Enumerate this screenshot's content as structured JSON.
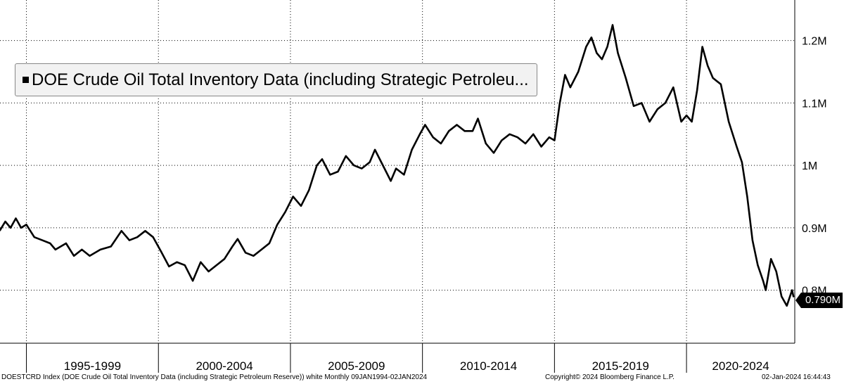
{
  "legend": {
    "label": "DOE Crude Oil Total Inventory Data (including Strategic Petroleu..."
  },
  "last_value_label": "0.790M",
  "footer": {
    "left": "DOESTCRD Index (DOE Crude Oil Total Inventory Data (including Strategic Petroleum Reserve)) white  Monthly 09JAN1994-02JAN2024",
    "center": "Copyright© 2024 Bloomberg Finance L.P.",
    "right": "02-Jan-2024 16:44:43"
  },
  "colors": {
    "line": "#000000",
    "background": "#ffffff",
    "grid": "#000000",
    "legend_bg": "#f2f2f2"
  },
  "chart_data": {
    "type": "line",
    "title": "",
    "xlabel": "",
    "ylabel": "",
    "y_ticks": [
      {
        "value": 0.8,
        "label": "0.8M"
      },
      {
        "value": 0.9,
        "label": "0.9M"
      },
      {
        "value": 1.0,
        "label": "1M"
      },
      {
        "value": 1.1,
        "label": "1.1M"
      },
      {
        "value": 1.2,
        "label": "1.2M"
      }
    ],
    "ylim": [
      0.715,
      1.265
    ],
    "xlim": [
      1994.0,
      2024.1
    ],
    "x_categories": [
      {
        "label": "1995-1999",
        "start": 1995,
        "end": 2000
      },
      {
        "label": "2000-2004",
        "start": 2000,
        "end": 2005
      },
      {
        "label": "2005-2009",
        "start": 2005,
        "end": 2010
      },
      {
        "label": "2010-2014",
        "start": 2010,
        "end": 2015
      },
      {
        "label": "2015-2019",
        "start": 2015,
        "end": 2020
      },
      {
        "label": "2020-2024",
        "start": 2020,
        "end": 2025
      }
    ],
    "grid": true,
    "legend_position": "top-left",
    "series": [
      {
        "name": "DOE Crude Oil Total Inventory Data (including Strategic Petroleum Reserve)",
        "points": [
          [
            1994.0,
            0.896
          ],
          [
            1994.2,
            0.91
          ],
          [
            1994.4,
            0.9
          ],
          [
            1994.6,
            0.915
          ],
          [
            1994.8,
            0.9
          ],
          [
            1995.0,
            0.905
          ],
          [
            1995.3,
            0.885
          ],
          [
            1995.6,
            0.88
          ],
          [
            1995.9,
            0.875
          ],
          [
            1996.1,
            0.865
          ],
          [
            1996.5,
            0.875
          ],
          [
            1996.8,
            0.855
          ],
          [
            1997.1,
            0.865
          ],
          [
            1997.4,
            0.855
          ],
          [
            1997.8,
            0.865
          ],
          [
            1998.2,
            0.87
          ],
          [
            1998.6,
            0.895
          ],
          [
            1998.9,
            0.88
          ],
          [
            1999.2,
            0.885
          ],
          [
            1999.5,
            0.895
          ],
          [
            1999.8,
            0.885
          ],
          [
            2000.1,
            0.862
          ],
          [
            2000.4,
            0.838
          ],
          [
            2000.7,
            0.845
          ],
          [
            2001.0,
            0.84
          ],
          [
            2001.3,
            0.815
          ],
          [
            2001.6,
            0.845
          ],
          [
            2001.9,
            0.83
          ],
          [
            2002.2,
            0.84
          ],
          [
            2002.5,
            0.85
          ],
          [
            2002.8,
            0.87
          ],
          [
            2003.0,
            0.882
          ],
          [
            2003.3,
            0.86
          ],
          [
            2003.6,
            0.855
          ],
          [
            2003.9,
            0.865
          ],
          [
            2004.2,
            0.875
          ],
          [
            2004.5,
            0.905
          ],
          [
            2004.8,
            0.925
          ],
          [
            2005.1,
            0.95
          ],
          [
            2005.4,
            0.935
          ],
          [
            2005.7,
            0.96
          ],
          [
            2006.0,
            1.0
          ],
          [
            2006.2,
            1.01
          ],
          [
            2006.5,
            0.985
          ],
          [
            2006.8,
            0.99
          ],
          [
            2007.1,
            1.015
          ],
          [
            2007.4,
            1.0
          ],
          [
            2007.7,
            0.995
          ],
          [
            2008.0,
            1.005
          ],
          [
            2008.2,
            1.025
          ],
          [
            2008.5,
            1.0
          ],
          [
            2008.8,
            0.975
          ],
          [
            2009.0,
            0.995
          ],
          [
            2009.3,
            0.985
          ],
          [
            2009.6,
            1.025
          ],
          [
            2009.9,
            1.05
          ],
          [
            2010.1,
            1.065
          ],
          [
            2010.4,
            1.045
          ],
          [
            2010.7,
            1.035
          ],
          [
            2011.0,
            1.055
          ],
          [
            2011.3,
            1.065
          ],
          [
            2011.6,
            1.055
          ],
          [
            2011.9,
            1.055
          ],
          [
            2012.1,
            1.075
          ],
          [
            2012.4,
            1.035
          ],
          [
            2012.7,
            1.02
          ],
          [
            2013.0,
            1.04
          ],
          [
            2013.3,
            1.05
          ],
          [
            2013.6,
            1.045
          ],
          [
            2013.9,
            1.035
          ],
          [
            2014.2,
            1.05
          ],
          [
            2014.5,
            1.03
          ],
          [
            2014.8,
            1.045
          ],
          [
            2015.0,
            1.04
          ],
          [
            2015.2,
            1.1
          ],
          [
            2015.4,
            1.145
          ],
          [
            2015.6,
            1.125
          ],
          [
            2015.9,
            1.15
          ],
          [
            2016.2,
            1.19
          ],
          [
            2016.4,
            1.205
          ],
          [
            2016.6,
            1.18
          ],
          [
            2016.8,
            1.17
          ],
          [
            2017.0,
            1.19
          ],
          [
            2017.2,
            1.225
          ],
          [
            2017.4,
            1.18
          ],
          [
            2017.7,
            1.14
          ],
          [
            2018.0,
            1.095
          ],
          [
            2018.3,
            1.1
          ],
          [
            2018.6,
            1.07
          ],
          [
            2018.9,
            1.09
          ],
          [
            2019.2,
            1.1
          ],
          [
            2019.5,
            1.125
          ],
          [
            2019.8,
            1.07
          ],
          [
            2020.0,
            1.08
          ],
          [
            2020.2,
            1.07
          ],
          [
            2020.4,
            1.12
          ],
          [
            2020.6,
            1.19
          ],
          [
            2020.8,
            1.16
          ],
          [
            2021.0,
            1.14
          ],
          [
            2021.3,
            1.13
          ],
          [
            2021.6,
            1.07
          ],
          [
            2021.9,
            1.03
          ],
          [
            2022.1,
            1.005
          ],
          [
            2022.3,
            0.95
          ],
          [
            2022.5,
            0.88
          ],
          [
            2022.7,
            0.84
          ],
          [
            2022.9,
            0.815
          ],
          [
            2023.0,
            0.8
          ],
          [
            2023.2,
            0.85
          ],
          [
            2023.4,
            0.83
          ],
          [
            2023.6,
            0.79
          ],
          [
            2023.8,
            0.775
          ],
          [
            2024.0,
            0.8
          ],
          [
            2024.05,
            0.79
          ]
        ]
      }
    ]
  }
}
